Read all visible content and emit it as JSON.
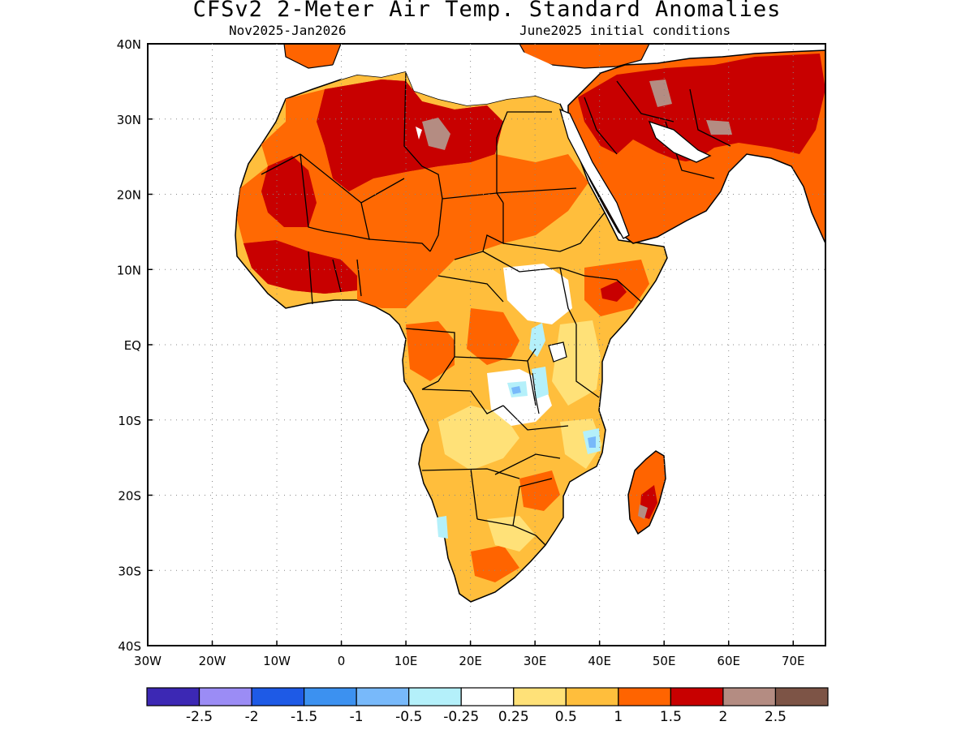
{
  "title": "CFSv2 2-Meter Air Temp. Standard Anomalies",
  "subtitle_left": "Nov2025-Jan2026",
  "subtitle_right": "June2025 initial conditions",
  "map": {
    "lon_range": [
      -30,
      75
    ],
    "lat_range": [
      -40,
      40
    ],
    "lon_ticks": [
      {
        "value": -30,
        "label": "30W"
      },
      {
        "value": -20,
        "label": "20W"
      },
      {
        "value": -10,
        "label": "10W"
      },
      {
        "value": 0,
        "label": "0"
      },
      {
        "value": 10,
        "label": "10E"
      },
      {
        "value": 20,
        "label": "20E"
      },
      {
        "value": 30,
        "label": "30E"
      },
      {
        "value": 40,
        "label": "40E"
      },
      {
        "value": 50,
        "label": "50E"
      },
      {
        "value": 60,
        "label": "60E"
      },
      {
        "value": 70,
        "label": "70E"
      }
    ],
    "lat_ticks": [
      {
        "value": 40,
        "label": "40N"
      },
      {
        "value": 30,
        "label": "30N"
      },
      {
        "value": 20,
        "label": "20N"
      },
      {
        "value": 10,
        "label": "10N"
      },
      {
        "value": 0,
        "label": "EQ"
      },
      {
        "value": -10,
        "label": "10S"
      },
      {
        "value": -20,
        "label": "20S"
      },
      {
        "value": -30,
        "label": "30S"
      },
      {
        "value": -40,
        "label": "40S"
      }
    ],
    "grid": "dotted"
  },
  "colorbar": {
    "colors": [
      "#3c28b4",
      "#9b8cf5",
      "#1e5ae6",
      "#3c91f0",
      "#78b9fa",
      "#b4f0fa",
      "#ffffff",
      "#ffe178",
      "#ffbe3c",
      "#ff6400",
      "#c80000",
      "#b48c82",
      "#7d5446"
    ],
    "labels": [
      "-2.5",
      "-2",
      "-1.5",
      "-1",
      "-0.5",
      "-0.25",
      "0.25",
      "0.5",
      "1",
      "1.5",
      "2",
      "2.5"
    ]
  }
}
